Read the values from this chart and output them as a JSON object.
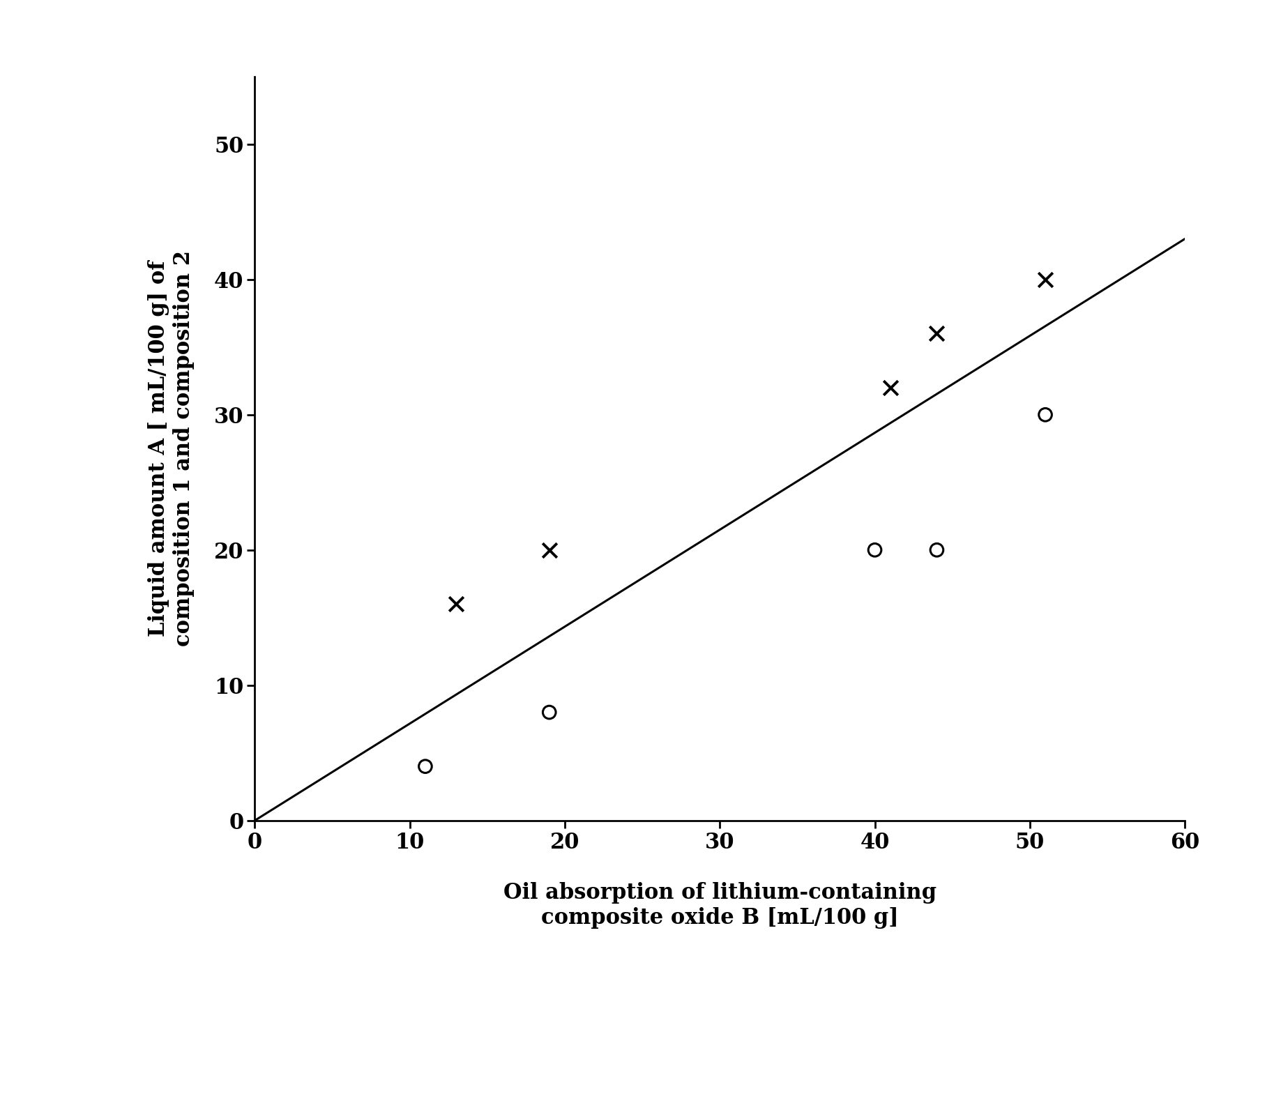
{
  "x_cross": [
    13,
    19,
    41,
    44,
    51
  ],
  "y_cross": [
    16,
    20,
    32,
    36,
    40
  ],
  "x_circle": [
    11,
    19,
    40,
    44,
    51
  ],
  "y_circle": [
    4,
    8,
    20,
    20,
    30
  ],
  "line_x": [
    0,
    60
  ],
  "line_y": [
    0,
    43
  ],
  "xlim": [
    0,
    60
  ],
  "ylim": [
    0,
    55
  ],
  "xticks": [
    0,
    10,
    20,
    30,
    40,
    50,
    60
  ],
  "yticks": [
    0,
    10,
    20,
    30,
    40,
    50
  ],
  "xlabel": "Oil absorption of lithium-containing\ncomposite oxide B [mL/100 g]",
  "ylabel": "Liquid amount A [ mL/100 g] of\ncomposition 1 and composition 2",
  "marker_size_cross": 220,
  "marker_size_circle": 180,
  "marker_lw_cross": 2.8,
  "marker_lw_circle": 2.2,
  "line_color": "#000000",
  "line_lw": 2.2,
  "background_color": "#ffffff",
  "font_size_label": 22,
  "font_size_tick": 22,
  "spine_lw": 2.0
}
